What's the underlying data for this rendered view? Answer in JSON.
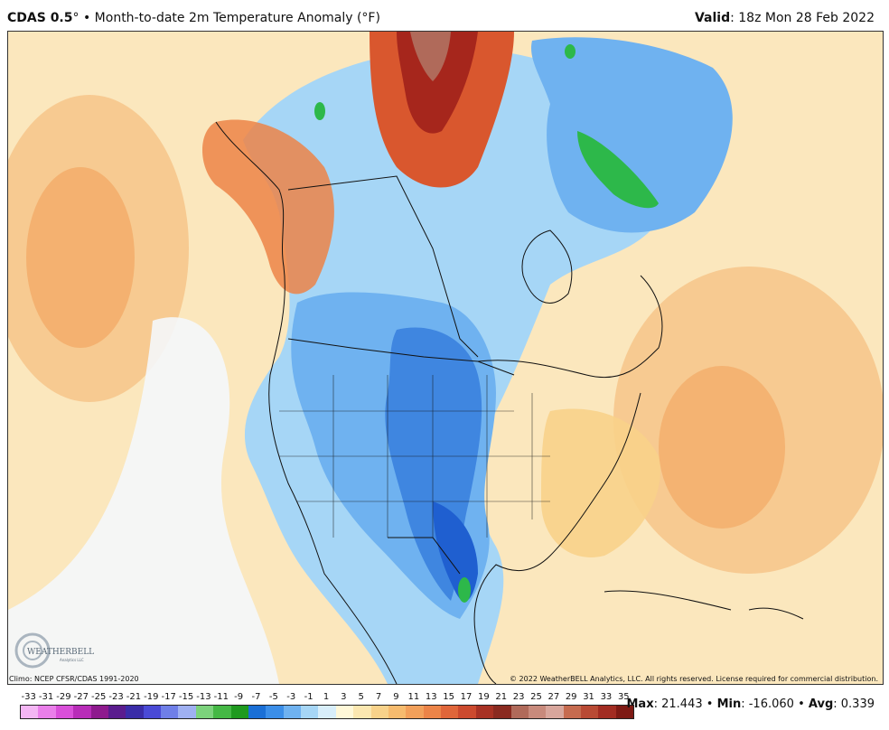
{
  "header": {
    "model": "CDAS 0.5",
    "degree": "°",
    "bullet": "•",
    "product": "Month-to-date 2m Temperature Anomaly (°F)",
    "valid_label": "Valid",
    "valid_time": ": 18z Mon 28 Feb 2022"
  },
  "footer": {
    "climo": "Climo: NCEP CFSR/CDAS 1991-2020",
    "copyright": "© 2022 WeatherBELL Analytics, LLC. All rights reserved. License required for commercial distribution.",
    "logo_text": "WEATHERBELL",
    "logo_sub": "Analytics LLC"
  },
  "colorbar": {
    "labels": [
      "-33",
      "-31",
      "-29",
      "-27",
      "-25",
      "-23",
      "-21",
      "-19",
      "-17",
      "-15",
      "-13",
      "-11",
      "-9",
      "-7",
      "-5",
      "-3",
      "-1",
      "1",
      "3",
      "5",
      "7",
      "9",
      "11",
      "13",
      "15",
      "17",
      "19",
      "21",
      "23",
      "25",
      "27",
      "29",
      "31",
      "33",
      "35"
    ],
    "colors": [
      "#f4b6f4",
      "#ea7fea",
      "#d94fd9",
      "#b82cb8",
      "#8e1a8e",
      "#5a1c8e",
      "#3a2ca8",
      "#4a4ad6",
      "#6f7fe8",
      "#9fb0f2",
      "#7cd27c",
      "#45b845",
      "#1f9a1f",
      "#1a6fd6",
      "#3b8ee8",
      "#6fb2f0",
      "#a6d6f6",
      "#d8eefa",
      "#fff8d8",
      "#fbe7b0",
      "#f8d28a",
      "#f6bb6e",
      "#f2a05a",
      "#ec8448",
      "#e0663a",
      "#cc4a2e",
      "#a83224",
      "#8a2a20",
      "#b06a5a",
      "#c88a7c",
      "#d8a69c",
      "#c66b4f",
      "#b94a34",
      "#a22c22",
      "#7e1a14"
    ]
  },
  "stats": {
    "max_label": "Max",
    "max_value": ": 21.443",
    "min_label": "Min",
    "min_value": ": -16.060",
    "avg_label": "Avg",
    "avg_value": ": 0.339",
    "sep": "•"
  },
  "map_colors": {
    "ocean_warm": "#fbe7bd",
    "warm_orange": "#f6c48a",
    "hot_red": "#d9572e",
    "deep_red": "#a6261c",
    "cool_light": "#dceffb",
    "cool_mid": "#8fc6f2",
    "cool_blue": "#3f86e0",
    "cold_blue": "#1f5fd0",
    "green_anom": "#2db84a",
    "near_zero": "#f4f7fb"
  }
}
